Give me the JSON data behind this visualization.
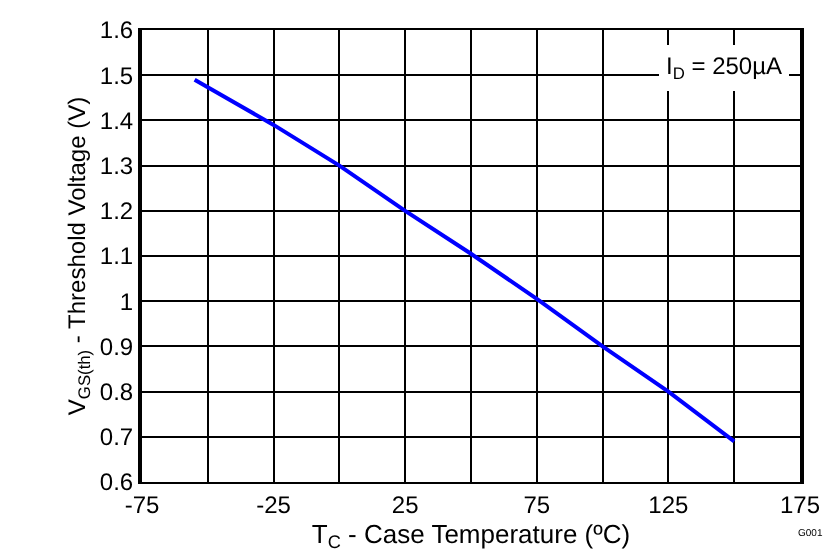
{
  "chart_data": {
    "type": "line",
    "xlabel": "T$_{C}$ - Case Temperature (ºC)",
    "ylabel": "V$_{GS(th)}$ - Threshold Voltage (V)",
    "x": [
      -55,
      -25,
      0,
      25,
      50,
      75,
      100,
      125,
      150
    ],
    "series": [
      {
        "color": "#0000ff",
        "values": [
          1.49,
          1.39,
          1.3,
          1.2,
          1.105,
          1.005,
          0.9,
          0.8,
          0.69
        ]
      }
    ],
    "xlim": [
      -75,
      175
    ],
    "xticks": [
      -75,
      {
        "value": -50,
        "label": null
      },
      -25,
      {
        "value": 0,
        "label": null
      },
      25,
      {
        "value": 50,
        "label": null
      },
      75,
      {
        "value": 100,
        "label": null
      },
      125,
      {
        "value": 150,
        "label": null
      },
      175
    ],
    "ylim": [
      0.6,
      1.6
    ],
    "yticks": [
      0.6,
      0.7,
      0.8,
      0.9,
      1,
      1.1,
      1.2,
      1.3,
      1.4,
      1.5,
      1.6
    ],
    "grid": true,
    "marker": "none",
    "line_style": "solid",
    "annotations": [
      "I$_{D}$ = 250µA",
      "G001"
    ]
  }
}
